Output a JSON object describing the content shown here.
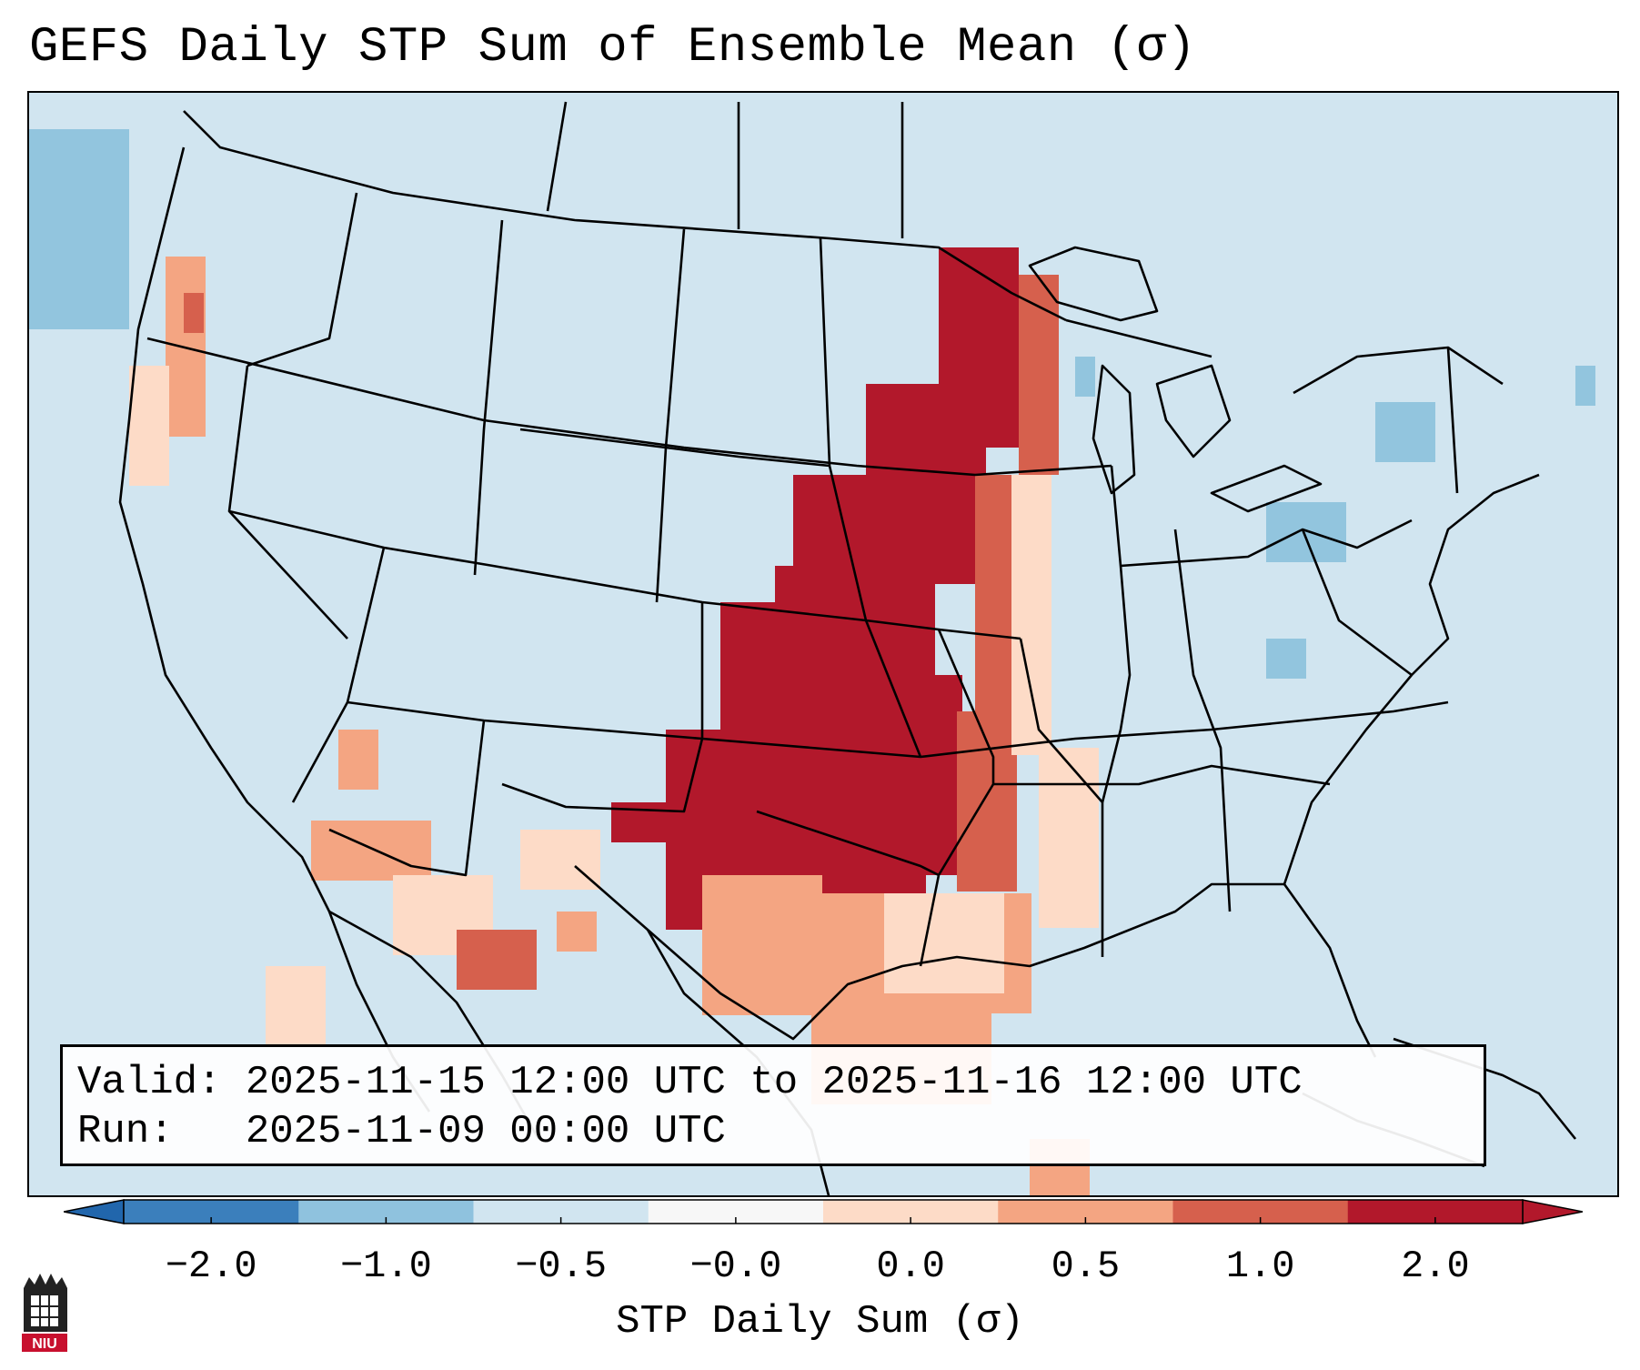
{
  "title": "GEFS Daily STP Sum of Ensemble Mean (σ)",
  "info": {
    "valid_label": "Valid:",
    "valid_value": "2025-11-15 12:00 UTC to 2025-11-16 12:00 UTC",
    "run_label": "Run:",
    "run_value": "2025-11-09 00:00 UTC"
  },
  "colorbar": {
    "label": "STP Daily Sum (σ)",
    "ticks": [
      "−2.0",
      "−1.0",
      "−0.5",
      "−0.0",
      "0.0",
      "0.5",
      "1.0",
      "2.0"
    ],
    "colors": [
      "#3b7fbc",
      "#8fc2de",
      "#d1e5f0",
      "#f7f7f7",
      "#fddbc7",
      "#f4a582",
      "#d6604d",
      "#b2182b"
    ],
    "under_color": "#2166ac",
    "over_color": "#b2182b"
  },
  "map": {
    "background_color": "#d1e5f0",
    "region": "Continental United States"
  },
  "logo": {
    "text": "NIU"
  }
}
